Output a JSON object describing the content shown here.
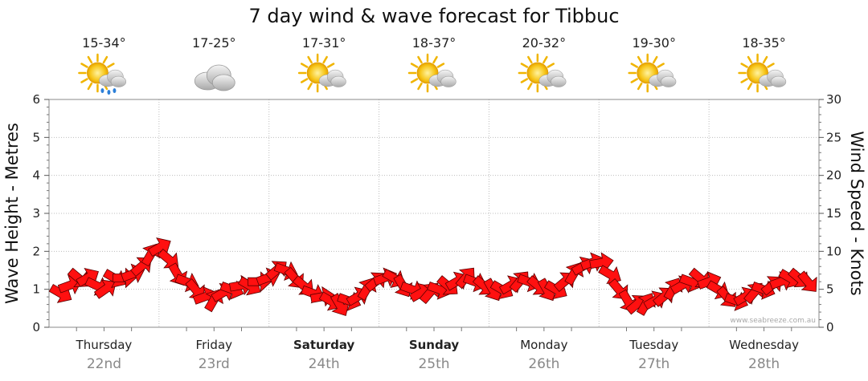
{
  "chart_data": {
    "type": "line",
    "title": "7 day wind & wave forecast for Tibbuc",
    "ylabel_left": "Wave Height - Metres",
    "ylabel_right": "Wind Speed - Knots",
    "ylim_left": [
      0,
      6
    ],
    "ylim_right": [
      0,
      30
    ],
    "yticks_left": [
      "0",
      "1",
      "2",
      "3",
      "4",
      "5",
      "6"
    ],
    "yticks_right": [
      "0",
      "5",
      "10",
      "15",
      "20",
      "25",
      "30"
    ],
    "grid": true,
    "days": [
      {
        "name": "Thursday",
        "date": "22nd",
        "temp": "15-34°",
        "icon": "sun-cloud-rain-icon",
        "weekend": false
      },
      {
        "name": "Friday",
        "date": "23rd",
        "temp": "17-25°",
        "icon": "cloud-icon",
        "weekend": false
      },
      {
        "name": "Saturday",
        "date": "24th",
        "temp": "17-31°",
        "icon": "sun-cloud-icon",
        "weekend": true
      },
      {
        "name": "Sunday",
        "date": "25th",
        "temp": "18-37°",
        "icon": "sun-cloud-icon",
        "weekend": true
      },
      {
        "name": "Monday",
        "date": "26th",
        "temp": "20-32°",
        "icon": "sun-cloud-icon",
        "weekend": false
      },
      {
        "name": "Tuesday",
        "date": "27th",
        "temp": "19-30°",
        "icon": "sun-cloud-icon",
        "weekend": false
      },
      {
        "name": "Wednesday",
        "date": "28th",
        "temp": "18-35°",
        "icon": "sun-cloud-icon",
        "weekend": false
      }
    ],
    "series": [
      {
        "values": [
          4.5,
          5.5,
          6.5,
          6.5,
          5.5,
          5,
          6.5,
          6.5,
          7,
          8,
          9.5,
          10.5,
          9,
          7,
          6,
          5,
          4,
          3.5,
          4.5,
          5,
          5.5,
          5.5,
          6,
          6.5,
          7.5,
          7.5,
          6.5,
          5.5,
          4.5,
          4,
          3.5,
          3,
          3.5,
          4,
          5,
          6,
          6.5,
          6.5,
          5.5,
          5,
          4.5,
          4.5,
          5,
          5.5,
          6,
          6.5,
          6,
          5.5,
          5,
          5,
          5.5,
          6,
          6,
          5.5,
          5,
          5,
          6,
          7,
          8,
          8.5,
          8.5,
          7,
          5,
          3.5,
          3,
          3,
          3.5,
          4,
          5,
          5.5,
          6,
          6.5,
          6,
          5,
          4,
          3.5,
          4,
          4.5,
          5,
          5.5,
          6,
          6.5,
          6.5,
          6
        ],
        "directions": [
          30,
          -20,
          40,
          -30,
          25,
          -35,
          30,
          0,
          -20,
          -40,
          -60,
          -30,
          40,
          60,
          20,
          50,
          -20,
          -60,
          -30,
          20,
          -10,
          30,
          0,
          -20,
          -40,
          20,
          50,
          40,
          20,
          -10,
          30,
          60,
          20,
          -30,
          -60,
          -40,
          -20,
          30,
          60,
          20,
          -30,
          -50,
          20,
          40,
          -30,
          -50,
          20,
          40,
          60,
          30,
          -30,
          -50,
          20,
          40,
          60,
          30,
          -40,
          -60,
          -30,
          -20,
          -10,
          30,
          50,
          60,
          -40,
          -60,
          -30,
          -40,
          -60,
          -30,
          20,
          40,
          -20,
          30,
          50,
          20,
          -30,
          -50,
          20,
          -40,
          -20,
          30,
          40,
          50
        ]
      }
    ],
    "watermark": "www.seabreeze.com.au"
  }
}
